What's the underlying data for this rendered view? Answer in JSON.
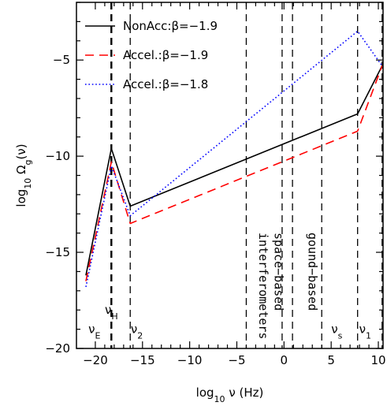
{
  "chart_data": {
    "type": "line",
    "xlabel": "log10 ν (Hz)",
    "ylabel": "log10 Ωg(ν)",
    "xlim": [
      -22,
      10.5
    ],
    "ylim": [
      -20,
      -2
    ],
    "xticks": [
      -20,
      -15,
      -10,
      -5,
      0,
      5,
      10
    ],
    "yticks": [
      -20,
      -15,
      -10,
      -5
    ],
    "grid": false,
    "legend": "top-left",
    "series": [
      {
        "name": "NonAcc:β=−1.9",
        "color": "#000000",
        "dash": "solid",
        "x": [
          -21.0,
          -18.3,
          -16.3,
          7.8,
          10.4
        ],
        "y": [
          -16.2,
          -9.6,
          -12.6,
          -7.8,
          -5.3
        ]
      },
      {
        "name": "Accel.:β=−1.9",
        "color": "#ff0000",
        "dash": "dashed",
        "x": [
          -21.0,
          -18.3,
          -16.3,
          7.8,
          10.4
        ],
        "y": [
          -16.5,
          -10.3,
          -13.5,
          -8.7,
          -5.3
        ]
      },
      {
        "name": "Accel.:β=−1.8",
        "color": "#0000ff",
        "dash": "dotted",
        "x": [
          -21.0,
          -18.3,
          -16.3,
          7.8,
          10.4
        ],
        "y": [
          -16.8,
          -10.5,
          -13.1,
          -3.5,
          -5.3
        ]
      }
    ],
    "vlines": [
      -18.3,
      -16.3,
      -4.0,
      -0.2,
      0.9,
      4.0,
      7.8,
      10.4
    ],
    "bold_vline": -18.3,
    "annotations": [
      {
        "text": "ν",
        "sub": "H",
        "x": -18.3,
        "y": -18.0
      },
      {
        "text": "ν",
        "sub": "E",
        "x": -20.1,
        "y": -19.0
      },
      {
        "text": "ν",
        "sub": "2",
        "x": -15.6,
        "y": -19.0
      },
      {
        "text": "ν",
        "sub": "s",
        "x": 5.6,
        "y": -19.0
      },
      {
        "text": "ν",
        "sub": "1",
        "x": 8.6,
        "y": -19.0
      }
    ],
    "region_labels": [
      {
        "text": "interferometers",
        "x": -2.6
      },
      {
        "text": "space−based",
        "x": -1.0
      },
      {
        "text": "gound−based",
        "x": 2.6
      }
    ]
  }
}
